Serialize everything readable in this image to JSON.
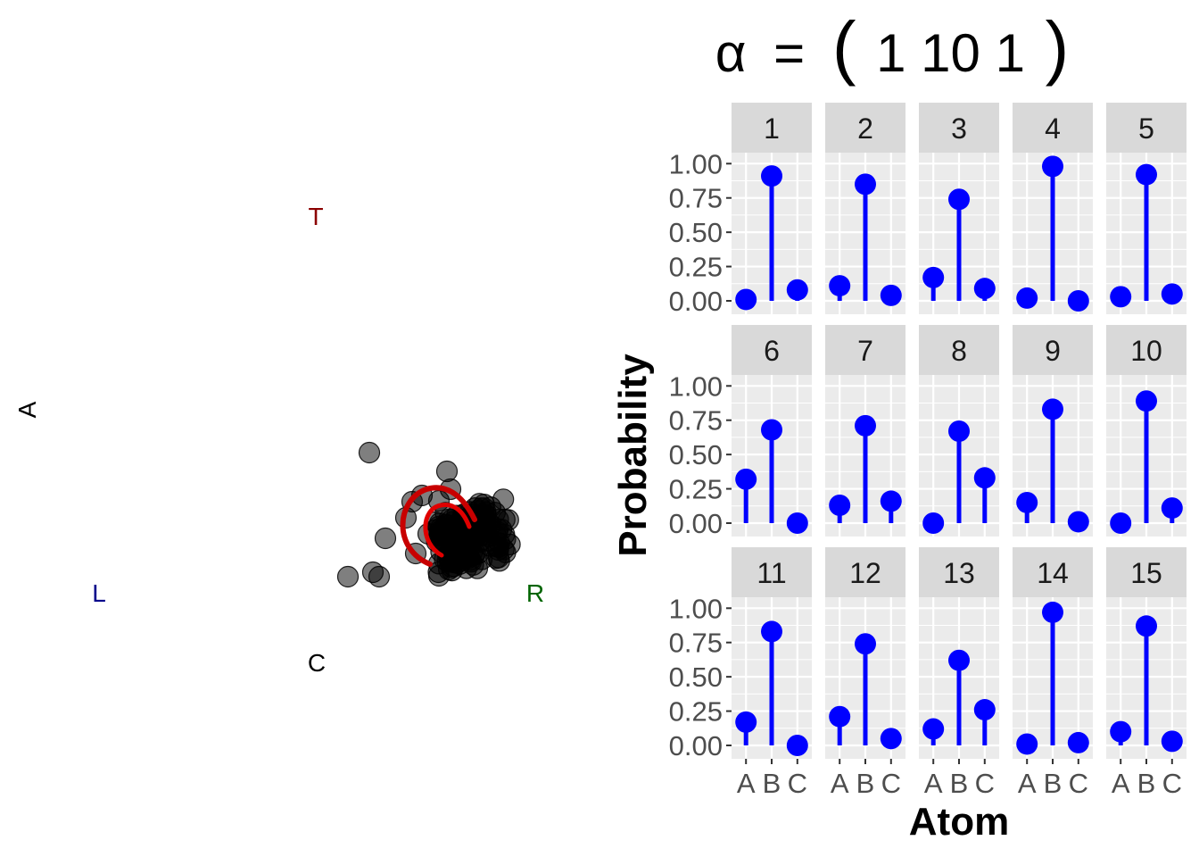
{
  "chart_data": [
    {
      "type": "scatter",
      "vertex_labels": {
        "top": "T",
        "left": "L",
        "right": "R",
        "bottom": "C",
        "side": "A"
      },
      "colors": {
        "top": "#8b0000",
        "left": "#00008b",
        "right": "#006400",
        "bottom": "#000000",
        "side": "#000000",
        "points": "#000000",
        "contour": "#e00000"
      },
      "grid": false,
      "legend": "none"
    },
    {
      "type": "bar",
      "title_symbol": "α",
      "title_eq": "=",
      "title_values": "1 10 1",
      "xlabel": "Atom",
      "ylabel": "Probability",
      "categories": [
        "A",
        "B",
        "C"
      ],
      "ylim": [
        0,
        1.08
      ],
      "y_ticks": [
        "0.00",
        "0.25",
        "0.50",
        "0.75",
        "1.00"
      ],
      "y_tick_values": [
        0,
        0.25,
        0.5,
        0.75,
        1.0
      ],
      "color": "#0000ff",
      "grid": true,
      "legend": "none",
      "panels": [
        {
          "label": "1",
          "values": [
            0.01,
            0.91,
            0.08
          ]
        },
        {
          "label": "2",
          "values": [
            0.11,
            0.85,
            0.04
          ]
        },
        {
          "label": "3",
          "values": [
            0.17,
            0.74,
            0.09
          ]
        },
        {
          "label": "4",
          "values": [
            0.02,
            0.98,
            0.0
          ]
        },
        {
          "label": "5",
          "values": [
            0.03,
            0.92,
            0.05
          ]
        },
        {
          "label": "6",
          "values": [
            0.32,
            0.68,
            0.0
          ]
        },
        {
          "label": "7",
          "values": [
            0.13,
            0.71,
            0.16
          ]
        },
        {
          "label": "8",
          "values": [
            0.0,
            0.67,
            0.33
          ]
        },
        {
          "label": "9",
          "values": [
            0.15,
            0.83,
            0.01
          ]
        },
        {
          "label": "10",
          "values": [
            0.0,
            0.89,
            0.11
          ]
        },
        {
          "label": "11",
          "values": [
            0.17,
            0.83,
            0.0
          ]
        },
        {
          "label": "12",
          "values": [
            0.21,
            0.74,
            0.05
          ]
        },
        {
          "label": "13",
          "values": [
            0.12,
            0.62,
            0.26
          ]
        },
        {
          "label": "14",
          "values": [
            0.01,
            0.97,
            0.02
          ]
        },
        {
          "label": "15",
          "values": [
            0.1,
            0.87,
            0.03
          ]
        }
      ]
    }
  ]
}
